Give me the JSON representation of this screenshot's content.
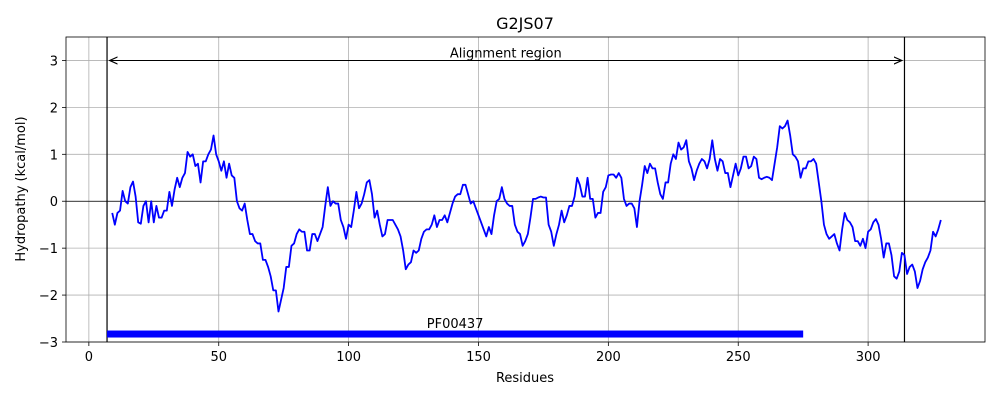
{
  "chart_data": {
    "type": "line",
    "title": "G2JS07",
    "xlabel": "Residues",
    "ylabel": "Hydropathy (kcal/mol)",
    "xlim": [
      -8.8,
      345
    ],
    "ylim": [
      -3,
      3.5
    ],
    "xticks": [
      0,
      50,
      100,
      150,
      200,
      250,
      300
    ],
    "yticks": [
      {
        "value": -3,
        "label": "−3"
      },
      {
        "value": -2,
        "label": "−2"
      },
      {
        "value": -1,
        "label": "−1"
      },
      0,
      1,
      2,
      3
    ],
    "grid": true,
    "hline": 0,
    "vlines": [
      7,
      314
    ],
    "annotation": {
      "text": "Alignment region",
      "x_start": 8,
      "x_end": 313,
      "y": 3
    },
    "domain": {
      "label": "PF00437",
      "start": 7,
      "end": 275,
      "y": -2.83,
      "color": "#0000ff"
    },
    "x": [
      9,
      10,
      11,
      12,
      13,
      14,
      15,
      16,
      17,
      18,
      19,
      20,
      21,
      22,
      23,
      24,
      25,
      26,
      27,
      28,
      29,
      30,
      31,
      32,
      33,
      34,
      35,
      36,
      37,
      38,
      39,
      40,
      41,
      42,
      43,
      44,
      45,
      46,
      47,
      48,
      49,
      50,
      51,
      52,
      53,
      54,
      55,
      56,
      57,
      58,
      59,
      60,
      61,
      62,
      63,
      64,
      65,
      66,
      67,
      68,
      69,
      70,
      71,
      72,
      73,
      74,
      75,
      76,
      77,
      78,
      79,
      80,
      81,
      82,
      83,
      84,
      85,
      86,
      87,
      88,
      89,
      90,
      91,
      92,
      93,
      94,
      95,
      96,
      97,
      98,
      99,
      100,
      101,
      102,
      103,
      104,
      105,
      106,
      107,
      108,
      109,
      110,
      111,
      112,
      113,
      114,
      115,
      116,
      117,
      118,
      119,
      120,
      121,
      122,
      123,
      124,
      125,
      126,
      127,
      128,
      129,
      130,
      131,
      132,
      133,
      134,
      135,
      136,
      137,
      138,
      139,
      140,
      141,
      142,
      143,
      144,
      145,
      146,
      147,
      148,
      149,
      150,
      151,
      152,
      153,
      154,
      155,
      156,
      157,
      158,
      159,
      160,
      161,
      162,
      163,
      164,
      165,
      166,
      167,
      168,
      169,
      170,
      171,
      172,
      173,
      174,
      175,
      176,
      177,
      178,
      179,
      180,
      181,
      182,
      183,
      184,
      185,
      186,
      187,
      188,
      189,
      190,
      191,
      192,
      193,
      194,
      195,
      196,
      197,
      198,
      199,
      200,
      201,
      202,
      203,
      204,
      205,
      206,
      207,
      208,
      209,
      210,
      211,
      212,
      213,
      214,
      215,
      216,
      217,
      218,
      219,
      220,
      221,
      222,
      223,
      224,
      225,
      226,
      227,
      228,
      229,
      230,
      231,
      232,
      233,
      234,
      235,
      236,
      237,
      238,
      239,
      240,
      241,
      242,
      243,
      244,
      245,
      246,
      247,
      248,
      249,
      250,
      251,
      252,
      253,
      254,
      255,
      256,
      257,
      258,
      259,
      260,
      261,
      262,
      263,
      264,
      265,
      266,
      267,
      268,
      269,
      270,
      271,
      272,
      273,
      274,
      275,
      276,
      277,
      278,
      279,
      280,
      281,
      282,
      283,
      284,
      285,
      286,
      287,
      288,
      289,
      290,
      291,
      292,
      293,
      294,
      295,
      296,
      297,
      298,
      299,
      300,
      301,
      302,
      303,
      304,
      305,
      306,
      307,
      308,
      309,
      310,
      311,
      312,
      313,
      314,
      315,
      316,
      317,
      318,
      319,
      320,
      321,
      322,
      323,
      324,
      325,
      326,
      327,
      328
    ],
    "series": [
      {
        "color": "#0000ff",
        "values": [
          -0.25,
          -0.5,
          -0.25,
          -0.2,
          0.22,
          0,
          -0.05,
          0.3,
          0.42,
          0.1,
          -0.45,
          -0.48,
          -0.1,
          0,
          -0.45,
          0,
          -0.45,
          -0.1,
          -0.35,
          -0.35,
          -0.2,
          -0.2,
          0.2,
          -0.1,
          0.25,
          0.5,
          0.3,
          0.5,
          0.6,
          1.05,
          0.95,
          1,
          0.75,
          0.8,
          0.4,
          0.85,
          0.85,
          1,
          1.1,
          1.4,
          1.0,
          0.85,
          0.65,
          0.85,
          0.5,
          0.8,
          0.55,
          0.5,
          0,
          -0.15,
          -0.2,
          -0.05,
          -0.4,
          -0.7,
          -0.7,
          -0.85,
          -0.9,
          -0.9,
          -1.25,
          -1.25,
          -1.4,
          -1.6,
          -1.9,
          -1.9,
          -2.35,
          -2.1,
          -1.85,
          -1.4,
          -1.4,
          -0.95,
          -0.9,
          -0.7,
          -0.6,
          -0.65,
          -0.65,
          -1.05,
          -1.05,
          -0.7,
          -0.7,
          -0.85,
          -0.7,
          -0.55,
          -0.1,
          0.3,
          -0.1,
          0,
          -0.05,
          -0.05,
          -0.4,
          -0.55,
          -0.8,
          -0.5,
          -0.55,
          -0.2,
          0.2,
          -0.15,
          -0.05,
          0.15,
          0.4,
          0.45,
          0.15,
          -0.35,
          -0.2,
          -0.5,
          -0.75,
          -0.7,
          -0.4,
          -0.4,
          -0.4,
          -0.5,
          -0.6,
          -0.75,
          -1.05,
          -1.45,
          -1.35,
          -1.3,
          -1.05,
          -1.1,
          -1.05,
          -0.8,
          -0.65,
          -0.6,
          -0.6,
          -0.5,
          -0.3,
          -0.55,
          -0.4,
          -0.4,
          -0.3,
          -0.45,
          -0.25,
          -0.05,
          0.1,
          0.15,
          0.15,
          0.35,
          0.35,
          0.15,
          -0.05,
          0,
          -0.15,
          -0.3,
          -0.45,
          -0.6,
          -0.75,
          -0.55,
          -0.7,
          -0.3,
          0,
          0.05,
          0.3,
          0.05,
          -0.05,
          -0.1,
          -0.1,
          -0.5,
          -0.65,
          -0.7,
          -0.95,
          -0.85,
          -0.7,
          -0.35,
          0.05,
          0.05,
          0.08,
          0.1,
          0.08,
          0.08,
          -0.5,
          -0.65,
          -0.95,
          -0.7,
          -0.5,
          -0.2,
          -0.45,
          -0.3,
          -0.1,
          -0.1,
          0.1,
          0.5,
          0.35,
          0.1,
          0.1,
          0.5,
          0.05,
          0.05,
          -0.35,
          -0.25,
          -0.25,
          0.2,
          0.3,
          0.55,
          0.57,
          0.57,
          0.5,
          0.6,
          0.5,
          0.05,
          -0.1,
          -0.05,
          -0.05,
          -0.15,
          -0.55,
          0,
          0.35,
          0.75,
          0.6,
          0.8,
          0.7,
          0.7,
          0.4,
          0.15,
          0.05,
          0.4,
          0.4,
          0.8,
          1,
          0.9,
          1.25,
          1.1,
          1.15,
          1.3,
          0.85,
          0.7,
          0.45,
          0.65,
          0.8,
          0.9,
          0.85,
          0.7,
          0.9,
          1.3,
          0.9,
          0.65,
          0.9,
          0.85,
          0.6,
          0.6,
          0.3,
          0.55,
          0.8,
          0.55,
          0.7,
          0.95,
          0.95,
          0.7,
          0.75,
          0.95,
          0.9,
          0.5,
          0.47,
          0.5,
          0.52,
          0.5,
          0.45,
          0.8,
          1.15,
          1.6,
          1.55,
          1.6,
          1.72,
          1.4,
          1,
          0.95,
          0.85,
          0.5,
          0.7,
          0.7,
          0.85,
          0.85,
          0.9,
          0.8,
          0.4,
          0,
          -0.5,
          -0.7,
          -0.8,
          -0.75,
          -0.7,
          -0.9,
          -1.05,
          -0.6,
          -0.25,
          -0.4,
          -0.45,
          -0.55,
          -0.85,
          -0.85,
          -0.95,
          -0.8,
          -1,
          -0.65,
          -0.6,
          -0.45,
          -0.38,
          -0.5,
          -0.8,
          -1.2,
          -0.9,
          -0.9,
          -1.15,
          -1.6,
          -1.65,
          -1.5,
          -1.1,
          -1.15,
          -1.55,
          -1.4,
          -1.35,
          -1.5,
          -1.85,
          -1.7,
          -1.45,
          -1.3,
          -1.2,
          -1.05,
          -0.65,
          -0.75,
          -0.6,
          -0.4
        ]
      }
    ]
  }
}
